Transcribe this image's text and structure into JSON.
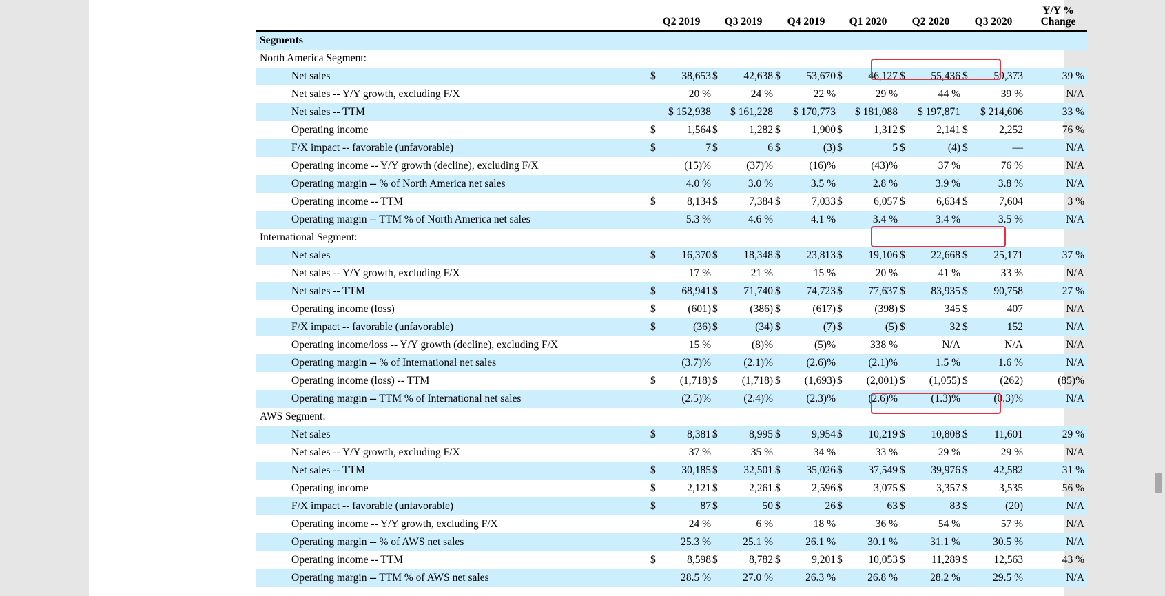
{
  "columns": [
    "Q2 2019",
    "Q3 2019",
    "Q4 2019",
    "Q1 2020",
    "Q2 2020",
    "Q3 2020"
  ],
  "change_header": [
    "Y/Y %",
    "Change"
  ],
  "segments_title": "Segments",
  "rows": [
    {
      "type": "section",
      "label": "North America Segment:"
    },
    {
      "type": "data",
      "label": "Net sales",
      "dollar": [
        true,
        true,
        true,
        true,
        true,
        true
      ],
      "values": [
        "38,653",
        "42,638",
        "53,670",
        "46,127",
        "55,436",
        "59,373"
      ],
      "change": "39 %"
    },
    {
      "type": "data",
      "label": "Net sales -- Y/Y growth, excluding F/X",
      "dollar": [
        false,
        false,
        false,
        false,
        false,
        false
      ],
      "values": [
        "20 %",
        "24 %",
        "22 %",
        "29 %",
        "44 %",
        "39 %"
      ],
      "change": "N/A"
    },
    {
      "type": "data",
      "label": "Net sales -- TTM",
      "dollar": [
        false,
        false,
        false,
        false,
        false,
        false
      ],
      "values": [
        "$ 152,938",
        "$ 161,228",
        "$ 170,773",
        "$ 181,088",
        "$ 197,871",
        "$ 214,606"
      ],
      "change": "33 %"
    },
    {
      "type": "data",
      "label": "Operating income",
      "dollar": [
        true,
        true,
        true,
        true,
        true,
        true
      ],
      "values": [
        "1,564",
        "1,282",
        "1,900",
        "1,312",
        "2,141",
        "2,252"
      ],
      "change": "76 %"
    },
    {
      "type": "data",
      "label": "F/X impact -- favorable (unfavorable)",
      "dollar": [
        true,
        true,
        true,
        true,
        true,
        true
      ],
      "values": [
        "7",
        "6",
        "(3)",
        "5",
        "(4)",
        "—"
      ],
      "change": "N/A"
    },
    {
      "type": "data",
      "label": "Operating income -- Y/Y growth (decline), excluding F/X",
      "dollar": [
        false,
        false,
        false,
        false,
        false,
        false
      ],
      "values": [
        "(15)%",
        "(37)%",
        "(16)%",
        "(43)%",
        "37 %",
        "76 %"
      ],
      "change": "N/A"
    },
    {
      "type": "data",
      "label": "Operating margin -- % of North America net sales",
      "dollar": [
        false,
        false,
        false,
        false,
        false,
        false
      ],
      "values": [
        "4.0 %",
        "3.0 %",
        "3.5 %",
        "2.8 %",
        "3.9 %",
        "3.8 %"
      ],
      "change": "N/A"
    },
    {
      "type": "data",
      "label": "Operating income -- TTM",
      "dollar": [
        true,
        true,
        true,
        true,
        true,
        true
      ],
      "values": [
        "8,134",
        "7,384",
        "7,033",
        "6,057",
        "6,634",
        "7,604"
      ],
      "change": "3 %"
    },
    {
      "type": "data",
      "label": "Operating margin -- TTM % of North America net sales",
      "dollar": [
        false,
        false,
        false,
        false,
        false,
        false
      ],
      "values": [
        "5.3 %",
        "4.6 %",
        "4.1 %",
        "3.4 %",
        "3.4 %",
        "3.5 %"
      ],
      "change": "N/A"
    },
    {
      "type": "section",
      "label": "International Segment:"
    },
    {
      "type": "data",
      "label": "Net sales",
      "dollar": [
        true,
        true,
        true,
        true,
        true,
        true
      ],
      "values": [
        "16,370",
        "18,348",
        "23,813",
        "19,106",
        "22,668",
        "25,171"
      ],
      "change": "37 %"
    },
    {
      "type": "data",
      "label": "Net sales -- Y/Y growth, excluding F/X",
      "dollar": [
        false,
        false,
        false,
        false,
        false,
        false
      ],
      "values": [
        "17 %",
        "21 %",
        "15 %",
        "20 %",
        "41 %",
        "33 %"
      ],
      "change": "N/A"
    },
    {
      "type": "data",
      "label": "Net sales -- TTM",
      "dollar": [
        true,
        true,
        true,
        true,
        true,
        true
      ],
      "values": [
        "68,941",
        "71,740",
        "74,723",
        "77,637",
        "83,935",
        "90,758"
      ],
      "change": "27 %"
    },
    {
      "type": "data",
      "label": "Operating income (loss)",
      "dollar": [
        true,
        true,
        true,
        true,
        true,
        true
      ],
      "values": [
        "(601)",
        "(386)",
        "(617)",
        "(398)",
        "345",
        "407"
      ],
      "change": "N/A"
    },
    {
      "type": "data",
      "label": "F/X impact -- favorable (unfavorable)",
      "dollar": [
        true,
        true,
        true,
        true,
        true,
        true
      ],
      "values": [
        "(36)",
        "(34)",
        "(7)",
        "(5)",
        "32",
        "152"
      ],
      "change": "N/A"
    },
    {
      "type": "data",
      "label": "Operating income/loss -- Y/Y growth (decline), excluding F/X",
      "dollar": [
        false,
        false,
        false,
        false,
        false,
        false
      ],
      "values": [
        "15 %",
        "(8)%",
        "(5)%",
        "338 %",
        "N/A",
        "N/A"
      ],
      "change": "N/A"
    },
    {
      "type": "data",
      "label": "Operating margin -- % of International net sales",
      "dollar": [
        false,
        false,
        false,
        false,
        false,
        false
      ],
      "values": [
        "(3.7)%",
        "(2.1)%",
        "(2.6)%",
        "(2.1)%",
        "1.5 %",
        "1.6 %"
      ],
      "change": "N/A"
    },
    {
      "type": "data",
      "label": "Operating income (loss) -- TTM",
      "dollar": [
        true,
        true,
        true,
        true,
        true,
        true
      ],
      "values": [
        "(1,718)",
        "(1,718)",
        "(1,693)",
        "(2,001)",
        "(1,055)",
        "(262)"
      ],
      "change": "(85)%"
    },
    {
      "type": "data",
      "label": "Operating margin -- TTM % of International net sales",
      "dollar": [
        false,
        false,
        false,
        false,
        false,
        false
      ],
      "values": [
        "(2.5)%",
        "(2.4)%",
        "(2.3)%",
        "(2.6)%",
        "(1.3)%",
        "(0.3)%"
      ],
      "change": "N/A"
    },
    {
      "type": "section",
      "label": "AWS Segment:"
    },
    {
      "type": "data",
      "label": "Net sales",
      "dollar": [
        true,
        true,
        true,
        true,
        true,
        true
      ],
      "values": [
        "8,381",
        "8,995",
        "9,954",
        "10,219",
        "10,808",
        "11,601"
      ],
      "change": "29 %"
    },
    {
      "type": "data",
      "label": "Net sales -- Y/Y growth, excluding F/X",
      "dollar": [
        false,
        false,
        false,
        false,
        false,
        false
      ],
      "values": [
        "37 %",
        "35 %",
        "34 %",
        "33 %",
        "29 %",
        "29 %"
      ],
      "change": "N/A"
    },
    {
      "type": "data",
      "label": "Net sales -- TTM",
      "dollar": [
        true,
        true,
        true,
        true,
        true,
        true
      ],
      "values": [
        "30,185",
        "32,501",
        "35,026",
        "37,549",
        "39,976",
        "42,582"
      ],
      "change": "31 %"
    },
    {
      "type": "data",
      "label": "Operating income",
      "dollar": [
        true,
        true,
        true,
        true,
        true,
        true
      ],
      "values": [
        "2,121",
        "2,261",
        "2,596",
        "3,075",
        "3,357",
        "3,535"
      ],
      "change": "56 %"
    },
    {
      "type": "data",
      "label": "F/X impact -- favorable (unfavorable)",
      "dollar": [
        true,
        true,
        true,
        true,
        true,
        true
      ],
      "values": [
        "87",
        "50",
        "26",
        "63",
        "83",
        "(20)"
      ],
      "change": "N/A"
    },
    {
      "type": "data",
      "label": "Operating income -- Y/Y growth, excluding F/X",
      "dollar": [
        false,
        false,
        false,
        false,
        false,
        false
      ],
      "values": [
        "24 %",
        "6 %",
        "18 %",
        "36 %",
        "54 %",
        "57 %"
      ],
      "change": "N/A"
    },
    {
      "type": "data",
      "label": "Operating margin -- % of AWS net sales",
      "dollar": [
        false,
        false,
        false,
        false,
        false,
        false
      ],
      "values": [
        "25.3 %",
        "25.1 %",
        "26.1 %",
        "30.1 %",
        "31.1 %",
        "30.5 %"
      ],
      "change": "N/A"
    },
    {
      "type": "data",
      "label": "Operating income -- TTM",
      "dollar": [
        true,
        true,
        true,
        true,
        true,
        true
      ],
      "values": [
        "8,598",
        "8,782",
        "9,201",
        "10,053",
        "11,289",
        "12,563"
      ],
      "change": "43 %"
    },
    {
      "type": "data",
      "label": "Operating margin -- TTM % of AWS net sales",
      "dollar": [
        false,
        false,
        false,
        false,
        false,
        false
      ],
      "values": [
        "28.5 %",
        "27.0 %",
        "26.3 %",
        "26.8 %",
        "28.2 %",
        "29.5 %"
      ],
      "change": "N/A"
    }
  ],
  "highlights": [
    "north-america-net-sales",
    "international-net-sales",
    "aws-net-sales"
  ],
  "colors": {
    "shade": "#cdeefd",
    "highlight": "#e8313a",
    "page": "#ffffff",
    "backdrop": "#e6e6e6"
  }
}
